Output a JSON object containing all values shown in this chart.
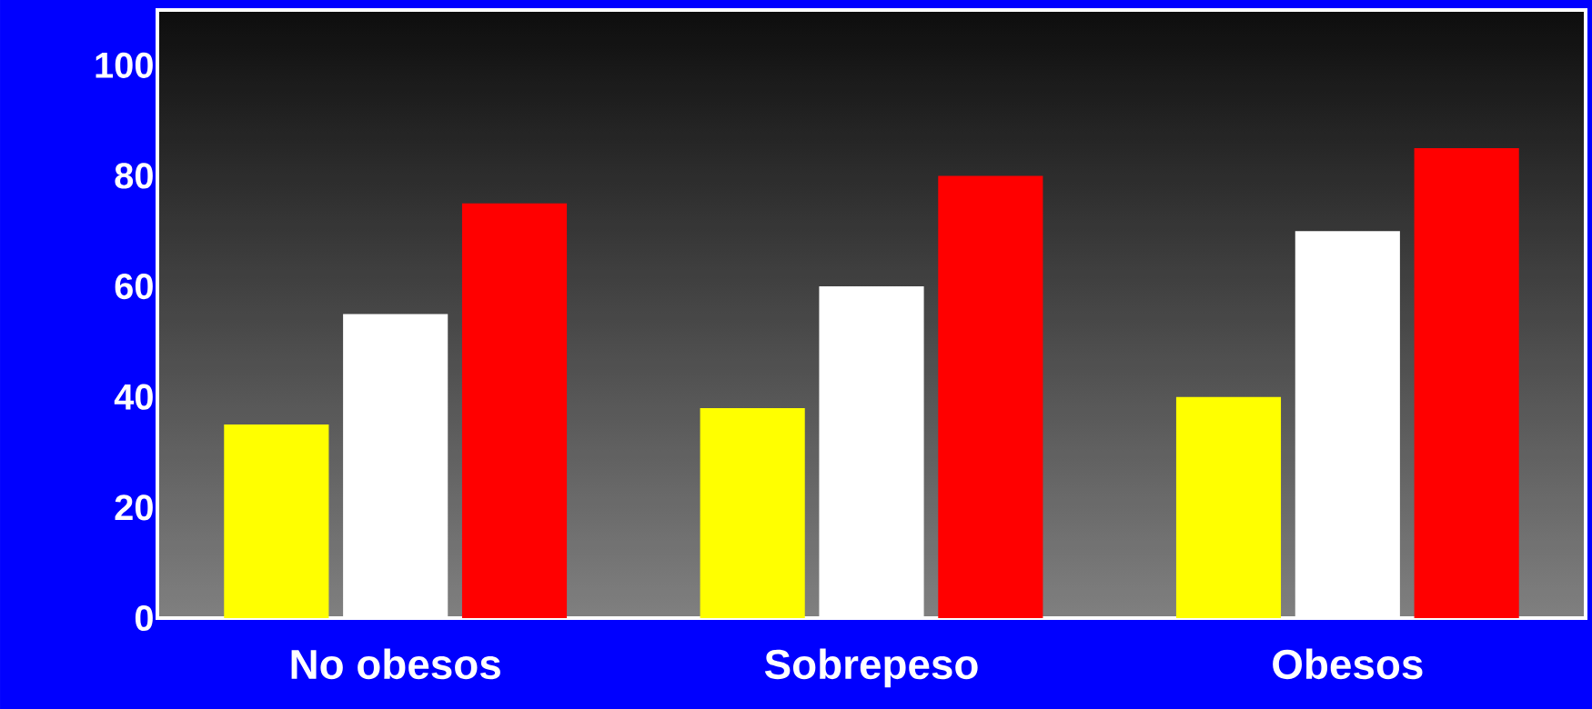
{
  "chart_data": {
    "type": "bar",
    "categories": [
      "No obesos",
      "Sobrepeso",
      "Obesos"
    ],
    "series": [
      {
        "color": "#ffff00",
        "values": [
          35,
          38,
          40
        ]
      },
      {
        "color": "#ffffff",
        "values": [
          55,
          60,
          70
        ]
      },
      {
        "color": "#ff0000",
        "values": [
          75,
          80,
          85
        ]
      }
    ],
    "ylim": [
      0,
      110
    ],
    "yticks": [
      0,
      20,
      40,
      60,
      80,
      100
    ],
    "grid": false
  }
}
